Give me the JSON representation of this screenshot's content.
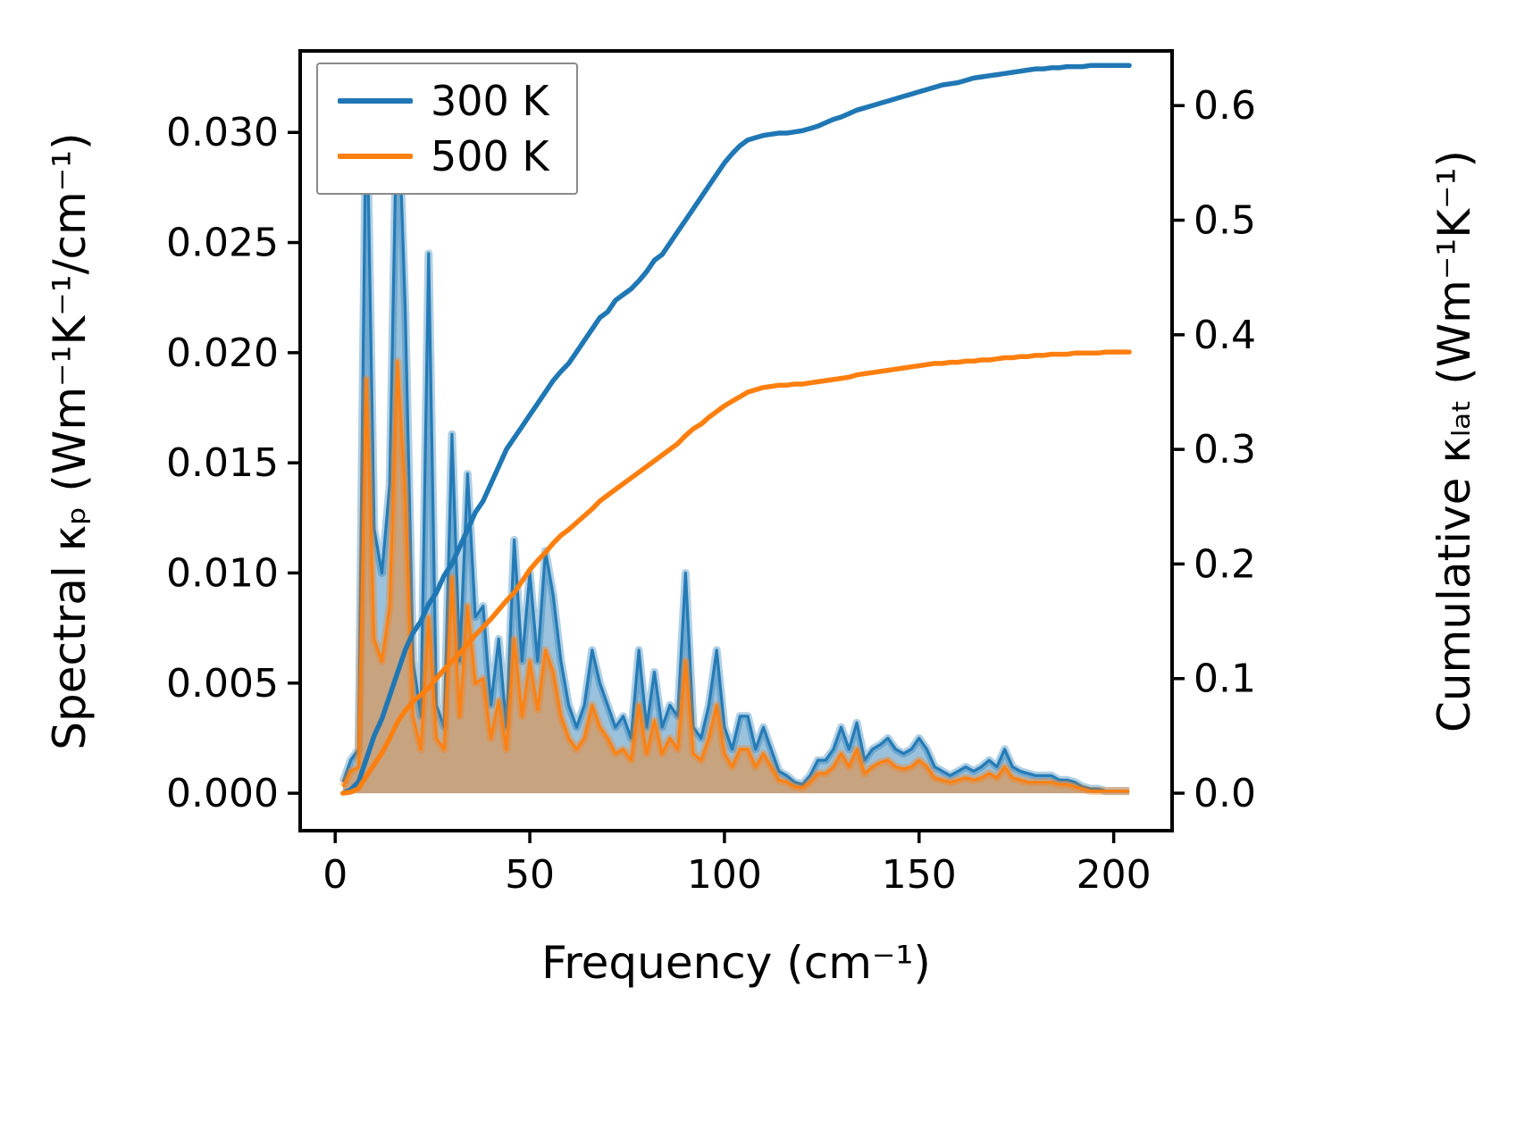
{
  "chart_data": {
    "type": "area",
    "title": "",
    "xlabel": "Frequency (cm⁻¹)",
    "ylabel_left": "Spectral κₚ (Wm⁻¹K⁻¹/cm⁻¹)",
    "ylabel_right": "Cumulative κₗₐₜ (Wm⁻¹K⁻¹)",
    "xlim": [
      -9,
      215
    ],
    "ylim_left": [
      -0.0017,
      0.0337
    ],
    "ylim_right": [
      -0.0327,
      0.6477
    ],
    "xticks": [
      0,
      50,
      100,
      150,
      200
    ],
    "xticklabels": [
      "0",
      "50",
      "100",
      "150",
      "200"
    ],
    "yticks_left": [
      0.0,
      0.005,
      0.01,
      0.015,
      0.02,
      0.025,
      0.03
    ],
    "yticklabels_left": [
      "0.000",
      "0.005",
      "0.010",
      "0.015",
      "0.020",
      "0.025",
      "0.030"
    ],
    "yticks_right": [
      0.0,
      0.1,
      0.2,
      0.3,
      0.4,
      0.5,
      0.6
    ],
    "yticklabels_right": [
      "0.0",
      "0.1",
      "0.2",
      "0.3",
      "0.4",
      "0.5",
      "0.6"
    ],
    "grid": false,
    "legend_position": "upper-left",
    "legend": [
      {
        "label": "300 K",
        "color": "#1f77b4"
      },
      {
        "label": "500 K",
        "color": "#ff7f0e"
      }
    ],
    "x": [
      2,
      4,
      6,
      8,
      10,
      12,
      14,
      16,
      18,
      20,
      22,
      24,
      26,
      28,
      30,
      32,
      34,
      36,
      38,
      40,
      42,
      44,
      46,
      48,
      50,
      52,
      54,
      56,
      58,
      60,
      62,
      64,
      66,
      68,
      70,
      72,
      74,
      76,
      78,
      80,
      82,
      84,
      86,
      88,
      90,
      92,
      94,
      96,
      98,
      100,
      102,
      104,
      106,
      108,
      110,
      112,
      114,
      116,
      118,
      120,
      122,
      124,
      126,
      128,
      130,
      132,
      134,
      136,
      138,
      140,
      142,
      144,
      146,
      148,
      150,
      152,
      154,
      156,
      158,
      160,
      162,
      164,
      166,
      168,
      170,
      172,
      174,
      176,
      178,
      180,
      182,
      184,
      186,
      188,
      190,
      192,
      194,
      196,
      198,
      200,
      202,
      204
    ],
    "series": [
      {
        "name": "300 K spectral",
        "axis": "left",
        "style": "area",
        "color": "#1f77b4",
        "values": [
          0.0005,
          0.0015,
          0.002,
          0.0325,
          0.012,
          0.01,
          0.014,
          0.0325,
          0.022,
          0.006,
          0.0035,
          0.0245,
          0.004,
          0.003,
          0.0163,
          0.006,
          0.0145,
          0.008,
          0.0085,
          0.004,
          0.007,
          0.003,
          0.0115,
          0.006,
          0.01,
          0.006,
          0.011,
          0.009,
          0.006,
          0.004,
          0.003,
          0.004,
          0.0065,
          0.005,
          0.004,
          0.003,
          0.0035,
          0.0025,
          0.0065,
          0.003,
          0.0055,
          0.003,
          0.004,
          0.0035,
          0.01,
          0.003,
          0.0025,
          0.004,
          0.0065,
          0.003,
          0.002,
          0.0035,
          0.0035,
          0.002,
          0.003,
          0.002,
          0.001,
          0.0008,
          0.0005,
          0.0004,
          0.0008,
          0.0015,
          0.0015,
          0.002,
          0.003,
          0.002,
          0.0032,
          0.0015,
          0.002,
          0.0022,
          0.0025,
          0.002,
          0.0018,
          0.002,
          0.0025,
          0.002,
          0.0012,
          0.001,
          0.0008,
          0.001,
          0.0012,
          0.001,
          0.0012,
          0.0015,
          0.0012,
          0.002,
          0.0012,
          0.001,
          0.0009,
          0.0008,
          0.0008,
          0.0008,
          0.0006,
          0.0006,
          0.0005,
          0.0003,
          0.0002,
          0.0002,
          0.0001,
          0.0001,
          0.0001,
          0.0001
        ]
      },
      {
        "name": "500 K spectral",
        "axis": "left",
        "style": "area",
        "color": "#ff7f0e",
        "values": [
          0.0003,
          0.001,
          0.0012,
          0.0188,
          0.007,
          0.006,
          0.0085,
          0.0196,
          0.0135,
          0.0035,
          0.002,
          0.008,
          0.0025,
          0.002,
          0.0098,
          0.0035,
          0.0085,
          0.005,
          0.0052,
          0.0025,
          0.0042,
          0.002,
          0.007,
          0.0035,
          0.006,
          0.0038,
          0.0065,
          0.0055,
          0.0035,
          0.0025,
          0.002,
          0.0025,
          0.004,
          0.003,
          0.0025,
          0.0018,
          0.002,
          0.0015,
          0.004,
          0.0018,
          0.0033,
          0.0018,
          0.0025,
          0.002,
          0.006,
          0.0018,
          0.0015,
          0.0025,
          0.004,
          0.0018,
          0.0012,
          0.002,
          0.002,
          0.0012,
          0.0018,
          0.0012,
          0.0006,
          0.0005,
          0.0003,
          0.00025,
          0.0005,
          0.0009,
          0.0009,
          0.0012,
          0.0018,
          0.0012,
          0.002,
          0.0009,
          0.0012,
          0.0014,
          0.0015,
          0.0012,
          0.0011,
          0.0012,
          0.0015,
          0.0012,
          0.0007,
          0.0006,
          0.0005,
          0.0006,
          0.0007,
          0.0006,
          0.0007,
          0.0009,
          0.0007,
          0.0012,
          0.0007,
          0.0006,
          0.0005,
          0.0005,
          0.0005,
          0.0005,
          0.0004,
          0.0004,
          0.0003,
          0.0002,
          0.0001,
          0.0001,
          0.0001,
          0.0001,
          0.0001,
          0.0001
        ]
      },
      {
        "name": "300 K cumulative",
        "axis": "right",
        "style": "line",
        "color": "#1f77b4",
        "values": [
          0.0,
          0.003,
          0.01,
          0.03,
          0.05,
          0.065,
          0.085,
          0.105,
          0.125,
          0.14,
          0.15,
          0.165,
          0.175,
          0.19,
          0.2,
          0.215,
          0.23,
          0.245,
          0.255,
          0.27,
          0.285,
          0.3,
          0.31,
          0.32,
          0.33,
          0.34,
          0.35,
          0.36,
          0.368,
          0.375,
          0.385,
          0.395,
          0.405,
          0.415,
          0.42,
          0.43,
          0.435,
          0.44,
          0.447,
          0.455,
          0.465,
          0.47,
          0.48,
          0.49,
          0.5,
          0.51,
          0.52,
          0.53,
          0.54,
          0.55,
          0.558,
          0.565,
          0.57,
          0.572,
          0.574,
          0.575,
          0.576,
          0.576,
          0.577,
          0.578,
          0.58,
          0.582,
          0.585,
          0.588,
          0.59,
          0.593,
          0.596,
          0.598,
          0.6,
          0.602,
          0.604,
          0.606,
          0.608,
          0.61,
          0.612,
          0.614,
          0.616,
          0.618,
          0.619,
          0.62,
          0.622,
          0.624,
          0.625,
          0.626,
          0.627,
          0.628,
          0.629,
          0.63,
          0.631,
          0.632,
          0.632,
          0.633,
          0.633,
          0.634,
          0.634,
          0.634,
          0.635,
          0.635,
          0.635,
          0.635,
          0.635,
          0.635
        ]
      },
      {
        "name": "500 K cumulative",
        "axis": "right",
        "style": "line",
        "color": "#ff7f0e",
        "values": [
          0.0,
          0.001,
          0.004,
          0.015,
          0.025,
          0.035,
          0.048,
          0.062,
          0.072,
          0.08,
          0.086,
          0.092,
          0.1,
          0.108,
          0.115,
          0.122,
          0.13,
          0.138,
          0.145,
          0.152,
          0.16,
          0.168,
          0.175,
          0.185,
          0.195,
          0.203,
          0.21,
          0.218,
          0.225,
          0.23,
          0.236,
          0.242,
          0.248,
          0.255,
          0.26,
          0.265,
          0.27,
          0.275,
          0.28,
          0.285,
          0.29,
          0.295,
          0.3,
          0.305,
          0.312,
          0.318,
          0.322,
          0.328,
          0.333,
          0.338,
          0.342,
          0.346,
          0.35,
          0.352,
          0.354,
          0.355,
          0.356,
          0.356,
          0.357,
          0.357,
          0.358,
          0.359,
          0.36,
          0.361,
          0.362,
          0.363,
          0.365,
          0.366,
          0.367,
          0.368,
          0.369,
          0.37,
          0.371,
          0.372,
          0.373,
          0.374,
          0.375,
          0.375,
          0.376,
          0.376,
          0.377,
          0.377,
          0.378,
          0.378,
          0.379,
          0.38,
          0.38,
          0.381,
          0.381,
          0.382,
          0.382,
          0.383,
          0.383,
          0.383,
          0.384,
          0.384,
          0.384,
          0.384,
          0.385,
          0.385,
          0.385,
          0.385
        ]
      }
    ],
    "axis_color": "#000000",
    "background": "#ffffff"
  }
}
